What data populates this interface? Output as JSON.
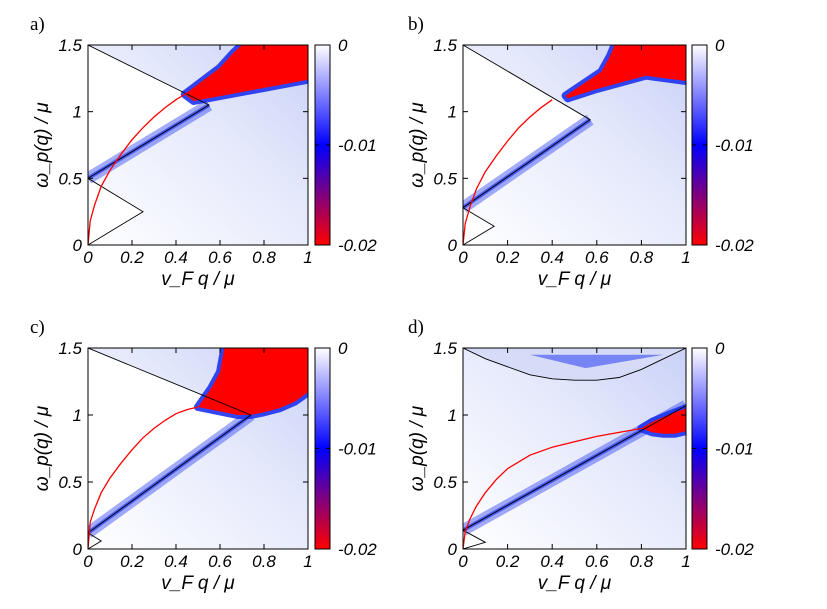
{
  "colors": {
    "zero": "#ffffff",
    "mid": "#0000ff",
    "min": "#ff0000",
    "boundary": "#000000",
    "dispersion": "#ff0000"
  },
  "chart_data": [
    {
      "type": "heatmap",
      "panel_label": "a)",
      "xlabel": "v_F q / μ",
      "ylabel": "ω_p(q) / μ",
      "xlim": [
        0,
        1
      ],
      "ylim": [
        0,
        1.5
      ],
      "xticks": [
        "0",
        "0.2",
        "0.4",
        "0.6",
        "0.8",
        "1"
      ],
      "yticks": [
        "0",
        "0.5",
        "1",
        "1.5"
      ],
      "colorbar": {
        "range": [
          -0.02,
          0
        ],
        "ticks": [
          "0",
          "-0.01",
          "-0.02"
        ]
      },
      "boundaries": [
        {
          "x": [
            0,
            0.25,
            0,
            0.55,
            0
          ],
          "y": [
            0,
            0.25,
            0.5,
            1.05,
            1.5
          ]
        }
      ],
      "dispersion": {
        "x": [
          0,
          0.01,
          0.03,
          0.06,
          0.1,
          0.15,
          0.2,
          0.25,
          0.3,
          0.35,
          0.4,
          0.45
        ],
        "y": [
          0,
          0.18,
          0.3,
          0.44,
          0.56,
          0.68,
          0.79,
          0.88,
          0.96,
          1.03,
          1.09,
          1.14
        ]
      },
      "red_region": {
        "x": [
          0.44,
          0.6,
          0.66,
          0.7,
          0.72,
          0.78,
          0.85,
          0.92,
          1.0,
          1.0,
          0.48
        ],
        "y": [
          1.13,
          1.33,
          1.44,
          1.5,
          1.5,
          1.5,
          1.5,
          1.5,
          1.5,
          1.24,
          1.08
        ]
      }
    },
    {
      "type": "heatmap",
      "panel_label": "b)",
      "xlabel": "v_F q / μ",
      "ylabel": "ω_p(q) / μ",
      "xlim": [
        0,
        1
      ],
      "ylim": [
        0,
        1.5
      ],
      "xticks": [
        "0",
        "0.2",
        "0.4",
        "0.6",
        "0.8",
        "1"
      ],
      "yticks": [
        "0",
        "0.5",
        "1",
        "1.5"
      ],
      "colorbar": {
        "range": [
          -0.02,
          0
        ],
        "ticks": [
          "0",
          "-0.01",
          "-0.02"
        ]
      },
      "boundaries": [
        {
          "x": [
            0,
            0.14,
            0,
            0.57,
            0
          ],
          "y": [
            0,
            0.14,
            0.28,
            0.94,
            1.5
          ]
        }
      ],
      "dispersion": {
        "x": [
          0,
          0.01,
          0.03,
          0.06,
          0.1,
          0.15,
          0.2,
          0.25,
          0.3,
          0.35,
          0.4
        ],
        "y": [
          0,
          0.16,
          0.28,
          0.42,
          0.55,
          0.67,
          0.78,
          0.88,
          0.96,
          1.03,
          1.09
        ]
      },
      "red_region": {
        "x": [
          0.46,
          0.62,
          0.66,
          0.68,
          0.75,
          0.85,
          1.0,
          1.0,
          0.82,
          0.6,
          0.47
        ],
        "y": [
          1.12,
          1.3,
          1.42,
          1.5,
          1.5,
          1.5,
          1.5,
          1.23,
          1.27,
          1.17,
          1.1
        ]
      }
    },
    {
      "type": "heatmap",
      "panel_label": "c)",
      "xlabel": "v_F q / μ",
      "ylabel": "ω_p(q) / μ",
      "xlim": [
        0,
        1
      ],
      "ylim": [
        0,
        1.5
      ],
      "xticks": [
        "0",
        "0.2",
        "0.4",
        "0.6",
        "0.8",
        "1"
      ],
      "yticks": [
        "0",
        "0.5",
        "1",
        "1.5"
      ],
      "colorbar": {
        "range": [
          -0.02,
          0
        ],
        "ticks": [
          "0",
          "-0.01",
          "-0.02"
        ]
      },
      "boundaries": [
        {
          "x": [
            0,
            0.06,
            0,
            0.74,
            0
          ],
          "y": [
            0,
            0.06,
            0.12,
            1.0,
            1.5
          ]
        }
      ],
      "dispersion": {
        "x": [
          0,
          0.01,
          0.03,
          0.06,
          0.1,
          0.15,
          0.2,
          0.25,
          0.3,
          0.35,
          0.4,
          0.45,
          0.5
        ],
        "y": [
          0,
          0.2,
          0.3,
          0.42,
          0.53,
          0.64,
          0.74,
          0.83,
          0.9,
          0.96,
          1.01,
          1.04,
          1.06
        ]
      },
      "red_region": {
        "x": [
          0.5,
          0.56,
          0.6,
          0.62,
          0.7,
          0.8,
          0.9,
          1.0,
          1.0,
          0.94,
          0.87,
          0.8,
          0.74,
          0.68,
          0.62,
          0.56
        ],
        "y": [
          1.06,
          1.2,
          1.32,
          1.5,
          1.5,
          1.5,
          1.5,
          1.5,
          1.17,
          1.1,
          1.05,
          1.02,
          1.0,
          1.0,
          1.02,
          1.04
        ]
      }
    },
    {
      "type": "heatmap",
      "panel_label": "d)",
      "xlabel": "v_F q / μ",
      "ylabel": "ω_p(q) / μ",
      "xlim": [
        0,
        1
      ],
      "ylim": [
        0,
        1.5
      ],
      "xticks": [
        "0",
        "0.2",
        "0.4",
        "0.6",
        "0.8",
        "1"
      ],
      "yticks": [
        "0",
        "0.5",
        "1",
        "1.5"
      ],
      "colorbar": {
        "range": [
          -0.02,
          0
        ],
        "ticks": [
          "0",
          "-0.01",
          "-0.02"
        ]
      },
      "boundaries": [
        {
          "x": [
            0,
            0.1,
            0,
            1.0
          ],
          "y": [
            0,
            0.05,
            0.14,
            1.07
          ]
        },
        {
          "x": [
            0,
            0.1,
            0.2,
            0.3,
            0.4,
            0.5,
            0.55,
            0.6,
            0.7,
            0.8,
            0.9,
            1.0
          ],
          "y": [
            1.5,
            1.42,
            1.36,
            1.3,
            1.27,
            1.26,
            1.26,
            1.26,
            1.28,
            1.34,
            1.42,
            1.5
          ]
        }
      ],
      "dispersion": {
        "x": [
          0,
          0.01,
          0.03,
          0.06,
          0.1,
          0.15,
          0.2,
          0.3,
          0.4,
          0.5,
          0.6,
          0.7,
          0.8
        ],
        "y": [
          0,
          0.13,
          0.22,
          0.32,
          0.42,
          0.52,
          0.6,
          0.7,
          0.76,
          0.8,
          0.84,
          0.87,
          0.9
        ]
      },
      "red_region": {
        "x": [
          0.8,
          0.85,
          0.92,
          1.0,
          1.0,
          0.95,
          0.9,
          0.85
        ],
        "y": [
          0.9,
          0.95,
          1.0,
          1.05,
          0.88,
          0.86,
          0.86,
          0.87
        ]
      }
    }
  ]
}
